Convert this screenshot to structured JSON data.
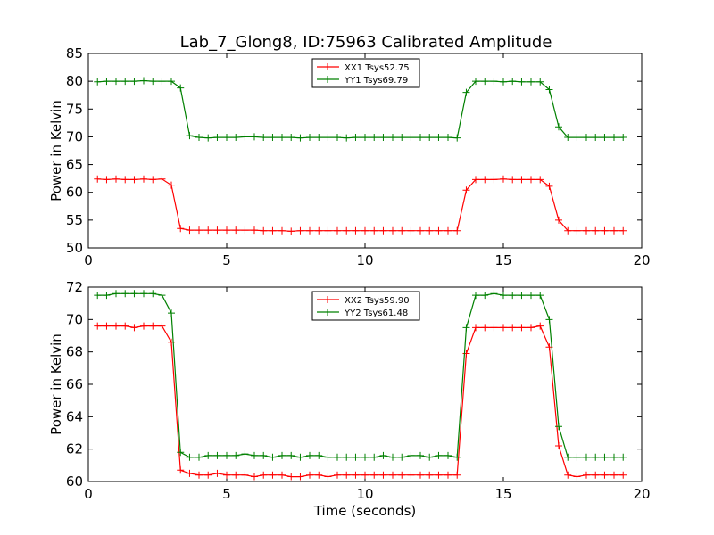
{
  "figure": {
    "title": "Lab_7_Glong8, ID:75963 Calibrated Amplitude"
  },
  "chart_data": [
    {
      "type": "line",
      "title": "Lab_7_Glong8, ID:75963 Calibrated Amplitude",
      "xlabel": "",
      "ylabel": "Power in Kelvin",
      "xlim": [
        0,
        20
      ],
      "ylim": [
        50,
        85
      ],
      "xticks": [
        "0",
        "5",
        "10",
        "15",
        "20"
      ],
      "yticks": [
        "50",
        "55",
        "60",
        "65",
        "70",
        "75",
        "80",
        "85"
      ],
      "grid": false,
      "legend_position": "top-center",
      "series": [
        {
          "name": "XX1 Tsys52.75",
          "color": "#ff0000",
          "marker": "+",
          "x": [
            0.33,
            0.66,
            1.0,
            1.33,
            1.66,
            2.0,
            2.33,
            2.66,
            3.0,
            3.33,
            3.66,
            4.0,
            4.33,
            4.66,
            5.0,
            5.33,
            5.66,
            6.0,
            6.33,
            6.66,
            7.0,
            7.33,
            7.66,
            8.0,
            8.33,
            8.66,
            9.0,
            9.33,
            9.66,
            10.0,
            10.33,
            10.66,
            11.0,
            11.33,
            11.66,
            12.0,
            12.33,
            12.66,
            13.0,
            13.33,
            13.66,
            14.0,
            14.33,
            14.66,
            15.0,
            15.33,
            15.66,
            16.0,
            16.33,
            16.66,
            17.0,
            17.33,
            17.66,
            18.0,
            18.33,
            18.66,
            19.0,
            19.33
          ],
          "y": [
            62.4,
            62.3,
            62.4,
            62.3,
            62.3,
            62.4,
            62.3,
            62.4,
            61.3,
            53.5,
            53.2,
            53.2,
            53.2,
            53.2,
            53.2,
            53.2,
            53.2,
            53.2,
            53.1,
            53.1,
            53.1,
            53.0,
            53.1,
            53.1,
            53.1,
            53.1,
            53.1,
            53.1,
            53.1,
            53.1,
            53.1,
            53.1,
            53.1,
            53.1,
            53.1,
            53.1,
            53.1,
            53.1,
            53.1,
            53.1,
            60.4,
            62.3,
            62.3,
            62.3,
            62.4,
            62.3,
            62.3,
            62.3,
            62.3,
            61.1,
            55.0,
            53.1,
            53.1,
            53.1,
            53.1,
            53.1,
            53.1,
            53.1
          ]
        },
        {
          "name": "YY1 Tsys69.79",
          "color": "#008000",
          "marker": "+",
          "x": [
            0.33,
            0.66,
            1.0,
            1.33,
            1.66,
            2.0,
            2.33,
            2.66,
            3.0,
            3.33,
            3.66,
            4.0,
            4.33,
            4.66,
            5.0,
            5.33,
            5.66,
            6.0,
            6.33,
            6.66,
            7.0,
            7.33,
            7.66,
            8.0,
            8.33,
            8.66,
            9.0,
            9.33,
            9.66,
            10.0,
            10.33,
            10.66,
            11.0,
            11.33,
            11.66,
            12.0,
            12.33,
            12.66,
            13.0,
            13.33,
            13.66,
            14.0,
            14.33,
            14.66,
            15.0,
            15.33,
            15.66,
            16.0,
            16.33,
            16.66,
            17.0,
            17.33,
            17.66,
            18.0,
            18.33,
            18.66,
            19.0,
            19.33
          ],
          "y": [
            79.9,
            80.0,
            80.0,
            80.0,
            80.0,
            80.1,
            80.0,
            80.0,
            80.0,
            78.8,
            70.2,
            69.9,
            69.8,
            69.9,
            69.9,
            69.9,
            70.0,
            70.0,
            69.9,
            69.9,
            69.9,
            69.9,
            69.8,
            69.9,
            69.9,
            69.9,
            69.9,
            69.8,
            69.9,
            69.9,
            69.9,
            69.9,
            69.9,
            69.9,
            69.9,
            69.9,
            69.9,
            69.9,
            69.9,
            69.8,
            78.0,
            80.0,
            80.0,
            80.0,
            79.9,
            80.0,
            79.9,
            79.9,
            79.9,
            78.5,
            71.8,
            69.9,
            69.9,
            69.9,
            69.9,
            69.9,
            69.9,
            69.9
          ]
        }
      ]
    },
    {
      "type": "line",
      "title": "",
      "xlabel": "Time (seconds)",
      "ylabel": "Power in Kelvin",
      "xlim": [
        0,
        20
      ],
      "ylim": [
        60,
        72
      ],
      "xticks": [
        "0",
        "5",
        "10",
        "15",
        "20"
      ],
      "yticks": [
        "60",
        "62",
        "64",
        "66",
        "68",
        "70",
        "72"
      ],
      "grid": false,
      "legend_position": "top-center",
      "series": [
        {
          "name": "XX2 Tsys59.90",
          "color": "#ff0000",
          "marker": "+",
          "x": [
            0.33,
            0.66,
            1.0,
            1.33,
            1.66,
            2.0,
            2.33,
            2.66,
            3.0,
            3.33,
            3.66,
            4.0,
            4.33,
            4.66,
            5.0,
            5.33,
            5.66,
            6.0,
            6.33,
            6.66,
            7.0,
            7.33,
            7.66,
            8.0,
            8.33,
            8.66,
            9.0,
            9.33,
            9.66,
            10.0,
            10.33,
            10.66,
            11.0,
            11.33,
            11.66,
            12.0,
            12.33,
            12.66,
            13.0,
            13.33,
            13.66,
            14.0,
            14.33,
            14.66,
            15.0,
            15.33,
            15.66,
            16.0,
            16.33,
            16.66,
            17.0,
            17.33,
            17.66,
            18.0,
            18.33,
            18.66,
            19.0,
            19.33
          ],
          "y": [
            69.6,
            69.6,
            69.6,
            69.6,
            69.5,
            69.6,
            69.6,
            69.6,
            68.6,
            60.7,
            60.5,
            60.4,
            60.4,
            60.5,
            60.4,
            60.4,
            60.4,
            60.3,
            60.4,
            60.4,
            60.4,
            60.3,
            60.3,
            60.4,
            60.4,
            60.3,
            60.4,
            60.4,
            60.4,
            60.4,
            60.4,
            60.4,
            60.4,
            60.4,
            60.4,
            60.4,
            60.4,
            60.4,
            60.4,
            60.4,
            67.9,
            69.5,
            69.5,
            69.5,
            69.5,
            69.5,
            69.5,
            69.5,
            69.6,
            68.3,
            62.2,
            60.4,
            60.3,
            60.4,
            60.4,
            60.4,
            60.4,
            60.4
          ]
        },
        {
          "name": "YY2 Tsys61.48",
          "color": "#008000",
          "marker": "+",
          "x": [
            0.33,
            0.66,
            1.0,
            1.33,
            1.66,
            2.0,
            2.33,
            2.66,
            3.0,
            3.33,
            3.66,
            4.0,
            4.33,
            4.66,
            5.0,
            5.33,
            5.66,
            6.0,
            6.33,
            6.66,
            7.0,
            7.33,
            7.66,
            8.0,
            8.33,
            8.66,
            9.0,
            9.33,
            9.66,
            10.0,
            10.33,
            10.66,
            11.0,
            11.33,
            11.66,
            12.0,
            12.33,
            12.66,
            13.0,
            13.33,
            13.66,
            14.0,
            14.33,
            14.66,
            15.0,
            15.33,
            15.66,
            16.0,
            16.33,
            16.66,
            17.0,
            17.33,
            17.66,
            18.0,
            18.33,
            18.66,
            19.0,
            19.33
          ],
          "y": [
            71.5,
            71.5,
            71.6,
            71.6,
            71.6,
            71.6,
            71.6,
            71.5,
            70.4,
            61.8,
            61.5,
            61.5,
            61.6,
            61.6,
            61.6,
            61.6,
            61.7,
            61.6,
            61.6,
            61.5,
            61.6,
            61.6,
            61.5,
            61.6,
            61.6,
            61.5,
            61.5,
            61.5,
            61.5,
            61.5,
            61.5,
            61.6,
            61.5,
            61.5,
            61.6,
            61.6,
            61.5,
            61.6,
            61.6,
            61.5,
            69.5,
            71.5,
            71.5,
            71.6,
            71.5,
            71.5,
            71.5,
            71.5,
            71.5,
            70.0,
            63.4,
            61.5,
            61.5,
            61.5,
            61.5,
            61.5,
            61.5,
            61.5
          ]
        }
      ]
    }
  ]
}
